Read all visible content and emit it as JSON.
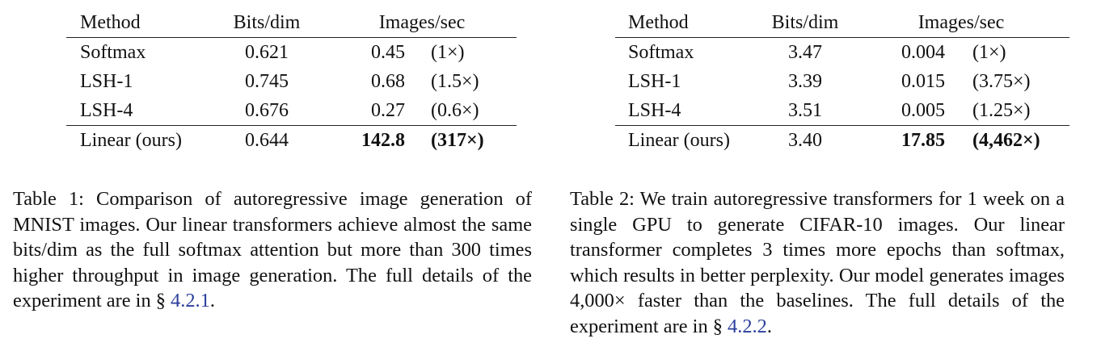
{
  "tables": [
    {
      "header": {
        "method": "Method",
        "bits": "Bits/dim",
        "images_per_sec": "Images/sec"
      },
      "rows": [
        {
          "method": "Softmax",
          "bits": "0.621",
          "ips": "0.45",
          "speedup": "(1×)"
        },
        {
          "method": "LSH-1",
          "bits": "0.745",
          "ips": "0.68",
          "speedup": "(1.5×)"
        },
        {
          "method": "LSH-4",
          "bits": "0.676",
          "ips": "0.27",
          "speedup": "(0.6×)"
        },
        {
          "method": "Linear (ours)",
          "bits": "0.644",
          "ips": "142.8",
          "speedup": "(317×)"
        }
      ],
      "caption": {
        "text": "Table 1: Comparison of autoregressive image generation of MNIST images. Our linear transformers achieve almost the same bits/dim as the full softmax attention but more than 300 times higher throughput in image generation. The full details of the experiment are in § ",
        "ref": "4.2.1",
        "end": "."
      }
    },
    {
      "header": {
        "method": "Method",
        "bits": "Bits/dim",
        "images_per_sec": "Images/sec"
      },
      "rows": [
        {
          "method": "Softmax",
          "bits": "3.47",
          "ips": "0.004",
          "speedup": "(1×)"
        },
        {
          "method": "LSH-1",
          "bits": "3.39",
          "ips": "0.015",
          "speedup": "(3.75×)"
        },
        {
          "method": "LSH-4",
          "bits": "3.51",
          "ips": "0.005",
          "speedup": "(1.25×)"
        },
        {
          "method": "Linear (ours)",
          "bits": "3.40",
          "ips": "17.85",
          "speedup": "(4,462×)"
        }
      ],
      "caption": {
        "text": "Table 2: We train autoregressive transformers for 1 week on a single GPU to generate CIFAR-10 images. Our linear transformer completes 3 times more epochs than softmax, which results in better perplexity. Our model generates images 4,000× faster than the baselines. The full details of the experiment are in § ",
        "ref": "4.2.2",
        "end": "."
      }
    }
  ],
  "colors": {
    "text": "#111111",
    "link": "#2b3f9c",
    "rule": "#222222"
  }
}
